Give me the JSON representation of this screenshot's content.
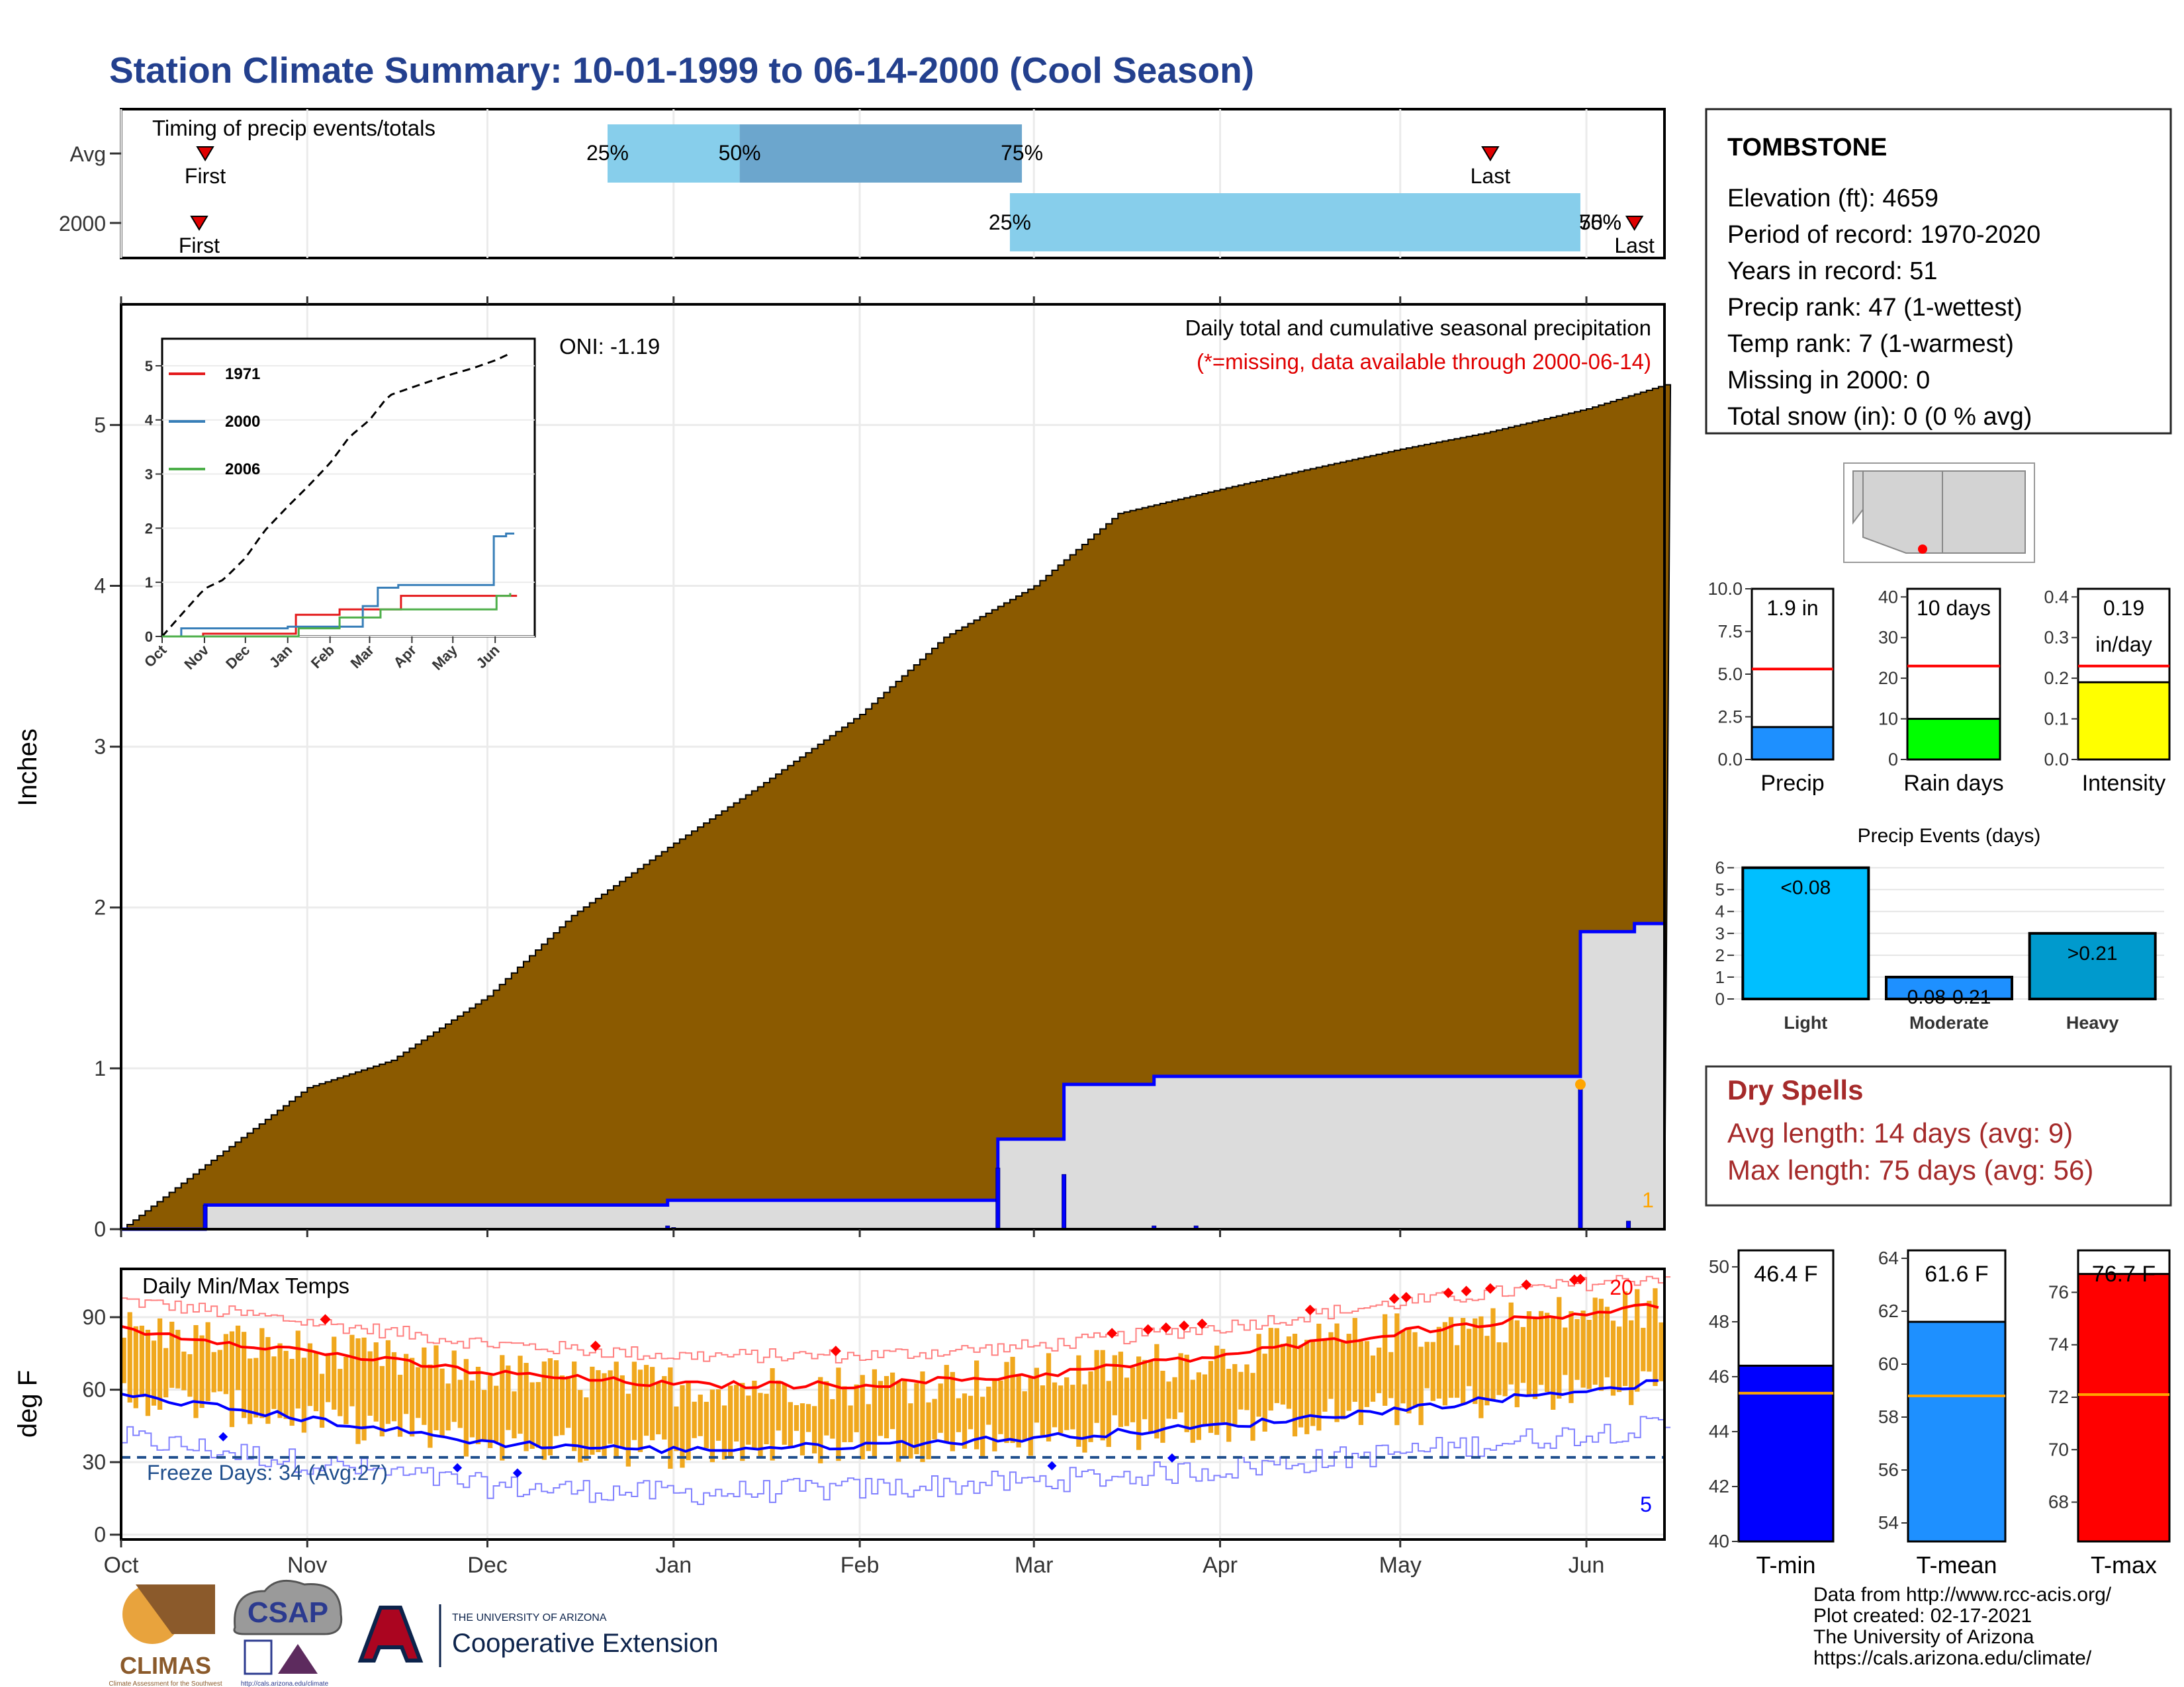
{
  "title": "Station Climate Summary: 10-01-1999 to 06-14-2000 (Cool Season)",
  "timing": {
    "label": "Timing of precip events/totals",
    "rows": [
      "Avg",
      "2000"
    ],
    "first_label": "First",
    "last_label": "Last",
    "avg": {
      "first": "1999-10-15",
      "p25": "1999-12-21",
      "p50": "2000-01-12",
      "p75": "2000-02-28",
      "last": "2000-05-16"
    },
    "y2000": {
      "first": "1999-10-14",
      "p25": "2000-02-26",
      "p50": "2000-05-31",
      "p75": "2000-05-31",
      "last": "2000-06-09"
    },
    "pct_labels": [
      "25%",
      "50%",
      "75%"
    ]
  },
  "precip": {
    "annotation": "Daily total and cumulative seasonal precipitation",
    "missing_note": "(*=missing, data available through 2000-06-14)",
    "oni": "ONI: -1.19",
    "ylabel": "Inches",
    "yticks": [
      0,
      1,
      2,
      3,
      4,
      5
    ],
    "count_label": "1",
    "colors": {
      "avg_fill": "#8B5A00",
      "cum_fill": "#DCDCDC",
      "cum_line": "#0000FF",
      "daily": "#0000FF",
      "dot": "#FFA500"
    }
  },
  "inset": {
    "xticks": [
      "Oct",
      "Nov",
      "Dec",
      "Jan",
      "Feb",
      "Mar",
      "Apr",
      "May",
      "Jun"
    ],
    "yticks": [
      0,
      1,
      2,
      3,
      4,
      5
    ],
    "legend": [
      {
        "name": "1971",
        "color": "#E41A1C"
      },
      {
        "name": "2000",
        "color": "#377EB8"
      },
      {
        "name": "2006",
        "color": "#4DAF4A"
      }
    ]
  },
  "temps": {
    "label": "Daily Min/Max Temps",
    "ylabel": "deg F",
    "yticks": [
      0,
      30,
      60,
      90
    ],
    "freeze_label": "Freeze Days: 34 (Avg:27)",
    "count_max": "20",
    "count_min": "5",
    "xticks": [
      "Oct",
      "Nov",
      "Dec",
      "Jan",
      "Feb",
      "Mar",
      "Apr",
      "May",
      "Jun"
    ]
  },
  "station": {
    "name": "TOMBSTONE",
    "lines": [
      "Elevation (ft): 4659",
      "Period of record: 1970-2020",
      "Years in record: 51",
      "Precip rank: 47 (1-wettest)",
      "Temp rank: 7 (1-warmest)",
      "Missing in 2000: 0",
      "Total snow (in): 0 (0 % avg)"
    ]
  },
  "mini_bars": [
    {
      "name": "Precip",
      "label": "1.9 in",
      "value": 1.9,
      "avg": 5.3,
      "ymax": 10,
      "yticks": [
        "0.0",
        "2.5",
        "5.0",
        "7.5",
        "10.0"
      ],
      "color": "#1E90FF"
    },
    {
      "name": "Rain days",
      "label": "10 days",
      "value": 10,
      "avg": 23,
      "ymax": 42,
      "yticks": [
        "0",
        "10",
        "20",
        "30",
        "40"
      ],
      "color": "#00FF00"
    },
    {
      "name": "Intensity",
      "label": "0.19\nin/day",
      "value": 0.19,
      "avg": 0.23,
      "ymax": 0.42,
      "yticks": [
        "0.0",
        "0.1",
        "0.2",
        "0.3",
        "0.4"
      ],
      "color": "#FFFF00"
    }
  ],
  "events": {
    "title": "Precip Events (days)",
    "categories": [
      "Light",
      "Moderate",
      "Heavy"
    ],
    "labels": [
      "<0.08",
      "0.08-0.21",
      ">0.21"
    ],
    "values": [
      6,
      1,
      3
    ],
    "yticks": [
      0,
      1,
      2,
      3,
      4,
      5,
      6
    ],
    "colors": [
      "#00BFFF",
      "#1E90FF",
      "#009ACD"
    ]
  },
  "dry": {
    "title": "Dry Spells",
    "avg": "Avg length: 14 days (avg: 9)",
    "max": "Max length: 75 days (avg: 56)"
  },
  "temp_bars": [
    {
      "name": "T-min",
      "label": "46.4 F",
      "value": 46.4,
      "avg": 45.4,
      "ymin": 40,
      "ymax": 50.6,
      "yticks": [
        40,
        42,
        44,
        46,
        48,
        50
      ],
      "color": "#0000FF"
    },
    {
      "name": "T-mean",
      "label": "61.6 F",
      "value": 61.6,
      "avg": 58.8,
      "ymin": 53.3,
      "ymax": 64.3,
      "yticks": [
        54,
        56,
        58,
        60,
        62,
        64
      ],
      "color": "#1E90FF"
    },
    {
      "name": "T-max",
      "label": "76.7 F",
      "value": 76.7,
      "avg": 72.1,
      "ymin": 66.5,
      "ymax": 77.6,
      "yticks": [
        68,
        70,
        72,
        74,
        76
      ],
      "color": "#FF0000"
    }
  ],
  "credits": [
    "Data from http://www.rcc-acis.org/",
    "Plot created: 02-17-2021",
    "The University of Arizona",
    "https://cals.arizona.edu/climate/"
  ],
  "logos": {
    "climas": "CLIMAS",
    "climas_sub": "Climate Assessment for the Southwest",
    "csap": "CSAP",
    "csap_url": "http://cals.arizona.edu/climate",
    "ua_small": "THE UNIVERSITY OF ARIZONA",
    "ua_big": "Cooperative Extension"
  },
  "chart_data": [
    {
      "type": "area",
      "title": "Daily total and cumulative seasonal precipitation",
      "ylabel": "Inches",
      "ylim": [
        0,
        5.75
      ],
      "x_range": [
        "1999-10-01",
        "2000-06-14"
      ],
      "series": [
        {
          "name": "avg",
          "x": [
            "1999-10-01",
            "1999-10-15",
            "1999-11-01",
            "1999-11-15",
            "1999-12-01",
            "1999-12-15",
            "2000-01-01",
            "2000-01-15",
            "2000-02-01",
            "2000-02-15",
            "2000-03-01",
            "2000-03-15",
            "2000-04-01",
            "2000-04-15",
            "2000-05-01",
            "2000-05-15",
            "2000-06-01",
            "2000-06-14"
          ],
          "values": [
            0,
            0.4,
            0.88,
            1.05,
            1.45,
            1.95,
            2.4,
            2.75,
            3.2,
            3.68,
            4.0,
            4.45,
            4.6,
            4.72,
            4.85,
            4.95,
            5.1,
            5.25
          ]
        },
        {
          "name": "2000",
          "x": [
            "1999-10-01",
            "1999-10-15",
            "1999-12-31",
            "2000-02-24",
            "2000-03-06",
            "2000-03-21",
            "2000-05-31",
            "2000-06-09",
            "2000-06-14"
          ],
          "values": [
            0,
            0.15,
            0.18,
            0.56,
            0.9,
            0.95,
            1.85,
            1.9,
            1.9
          ]
        }
      ],
      "daily": [
        {
          "date": "1999-10-15",
          "value": 0.15
        },
        {
          "date": "1999-12-31",
          "value": 0.02
        },
        {
          "date": "2000-01-01",
          "value": 0.01
        },
        {
          "date": "2000-02-24",
          "value": 0.38
        },
        {
          "date": "2000-03-06",
          "value": 0.34
        },
        {
          "date": "2000-03-21",
          "value": 0.02
        },
        {
          "date": "2000-03-28",
          "value": 0.02
        },
        {
          "date": "2000-05-31",
          "value": 0.9
        },
        {
          "date": "2000-06-08",
          "value": 0.05
        }
      ]
    },
    {
      "type": "line",
      "title": "Daily Min/Max Temps",
      "ylabel": "deg F",
      "ylim": [
        -2,
        110
      ],
      "x_range": [
        "1999-10-01",
        "2000-06-14"
      ],
      "series": [
        {
          "name": "avg_max",
          "x": [
            "1999-10-01",
            "1999-11-01",
            "1999-12-01",
            "2000-01-01",
            "2000-02-01",
            "2000-03-01",
            "2000-04-01",
            "2000-05-01",
            "2000-06-01",
            "2000-06-14"
          ],
          "values": [
            85,
            76,
            67,
            62,
            62,
            66,
            74,
            84,
            92,
            95
          ]
        },
        {
          "name": "avg_min",
          "x": [
            "1999-10-01",
            "1999-11-01",
            "1999-12-01",
            "2000-01-01",
            "2000-02-01",
            "2000-03-01",
            "2000-04-01",
            "2000-05-01",
            "2000-06-01",
            "2000-06-14"
          ],
          "values": [
            58,
            48,
            38,
            35,
            37,
            40,
            45,
            52,
            60,
            63
          ]
        }
      ],
      "freeze_line": 32
    }
  ]
}
